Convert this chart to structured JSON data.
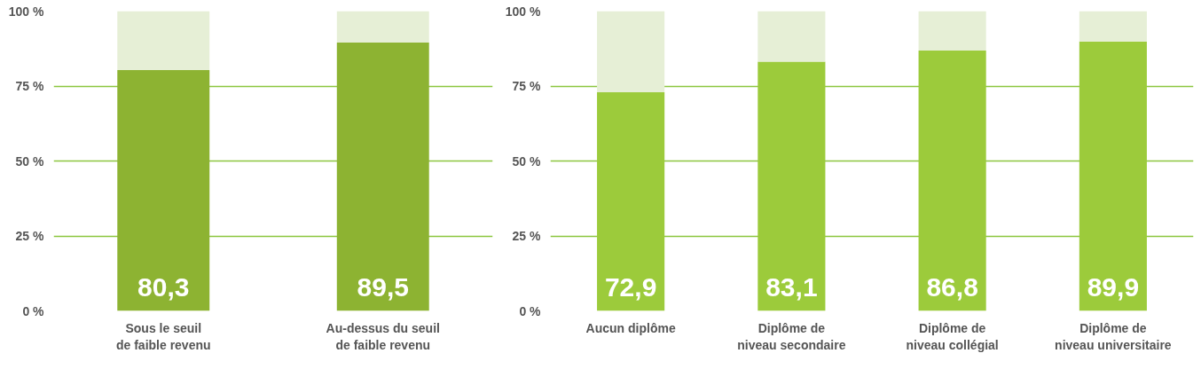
{
  "chart_data": [
    {
      "type": "bar",
      "stacked": true,
      "categories": [
        "Sous le seuil\nde faible revenu",
        "Au-dessus du seuil\nde faible revenu"
      ],
      "series": [
        {
          "color": "#8db332",
          "values": [
            80.3,
            89.5
          ],
          "value_labels": [
            "80,3",
            "89,5"
          ]
        },
        {
          "color": "#e6efd6",
          "values": [
            19.7,
            10.5
          ]
        }
      ],
      "ylim": [
        0,
        100
      ],
      "yticks": [
        {
          "value": 0,
          "label": "0 %"
        },
        {
          "value": 25,
          "label": "25 %"
        },
        {
          "value": 50,
          "label": "50 %"
        },
        {
          "value": 75,
          "label": "75 %"
        },
        {
          "value": 100,
          "label": "100 %"
        }
      ],
      "grid": "y"
    },
    {
      "type": "bar",
      "stacked": true,
      "categories": [
        "Aucun diplôme",
        "Diplôme de\nniveau secondaire",
        "Diplôme de\nniveau collégial",
        "Diplôme de\nniveau universitaire"
      ],
      "series": [
        {
          "color": "#9ccb3b",
          "values": [
            72.9,
            83.1,
            86.8,
            89.9
          ],
          "value_labels": [
            "72,9",
            "83,1",
            "86,8",
            "89,9"
          ]
        },
        {
          "color": "#e6efd6",
          "values": [
            27.1,
            16.9,
            13.2,
            10.1
          ]
        }
      ],
      "ylim": [
        0,
        100
      ],
      "yticks": [
        {
          "value": 0,
          "label": "0 %"
        },
        {
          "value": 25,
          "label": "25 %"
        },
        {
          "value": 50,
          "label": "50 %"
        },
        {
          "value": 75,
          "label": "75 %"
        },
        {
          "value": 100,
          "label": "100 %"
        }
      ],
      "grid": "y"
    }
  ]
}
